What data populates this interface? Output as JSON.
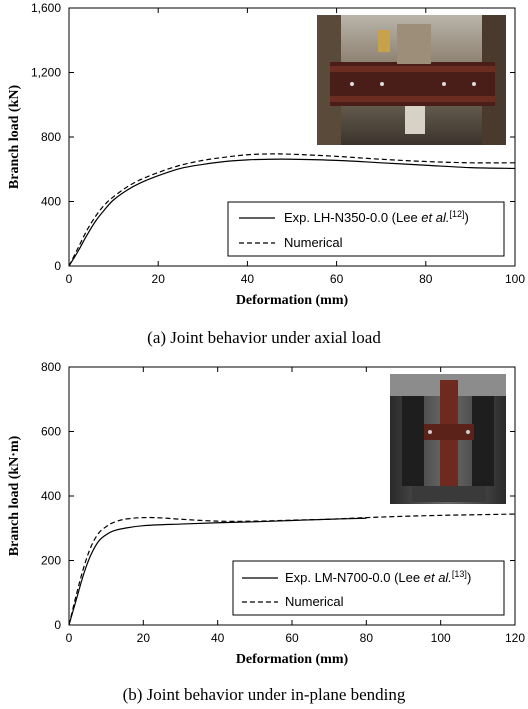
{
  "chart_data": [
    {
      "type": "line",
      "caption": "(a) Joint behavior under axial load",
      "xlabel": "Deformation (mm)",
      "ylabel": "Branch load (kN)",
      "xlim": [
        0,
        100
      ],
      "ylim": [
        0,
        1600
      ],
      "xticks": [
        0,
        20,
        40,
        60,
        80,
        100
      ],
      "yticks": [
        0,
        400,
        800,
        1200,
        1600
      ],
      "xtick_labels": [
        "0",
        "20",
        "40",
        "60",
        "80",
        "100"
      ],
      "ytick_labels": [
        "0",
        "400",
        "800",
        "1,200",
        "1,600"
      ],
      "grid": false,
      "legend_position": "bottom-right",
      "photo_inset": "test-specimen-photo",
      "series": [
        {
          "name": "Exp. LH-N350-0.0 (Lee et al.[12])",
          "name_parts": {
            "pre": "Exp. LH-N350-0.0 (Lee ",
            "italic": "et al.",
            "sup": "[12]",
            "post": ")"
          },
          "style": "solid",
          "x": [
            0,
            2,
            4,
            6,
            8,
            10,
            13,
            16,
            20,
            25,
            30,
            35,
            40,
            45,
            50,
            60,
            70,
            80,
            90,
            100
          ],
          "y": [
            0,
            90,
            190,
            280,
            350,
            410,
            470,
            515,
            560,
            605,
            630,
            648,
            658,
            662,
            662,
            655,
            640,
            625,
            610,
            605
          ]
        },
        {
          "name": "Numerical",
          "style": "dashed",
          "x": [
            0,
            2,
            4,
            6,
            8,
            10,
            13,
            16,
            20,
            25,
            30,
            35,
            40,
            45,
            50,
            60,
            70,
            80,
            90,
            100
          ],
          "y": [
            0,
            110,
            220,
            310,
            380,
            430,
            490,
            535,
            580,
            625,
            655,
            675,
            690,
            695,
            693,
            680,
            662,
            648,
            640,
            640
          ]
        }
      ]
    },
    {
      "type": "line",
      "caption": "(b) Joint behavior under in-plane bending",
      "xlabel": "Deformation (mm)",
      "ylabel": "Branch load (kN·m)",
      "xlim": [
        0,
        120
      ],
      "ylim": [
        0,
        800
      ],
      "xticks": [
        0,
        20,
        40,
        60,
        80,
        100,
        120
      ],
      "yticks": [
        0,
        200,
        400,
        600,
        800
      ],
      "xtick_labels": [
        "0",
        "20",
        "40",
        "60",
        "80",
        "100",
        "120"
      ],
      "ytick_labels": [
        "0",
        "200",
        "400",
        "600",
        "800"
      ],
      "grid": false,
      "legend_position": "bottom-right",
      "photo_inset": "test-specimen-photo",
      "series": [
        {
          "name": "Exp. LM-N700-0.0 (Lee et al.[13])",
          "name_parts": {
            "pre": "Exp. LM-N700-0.0 (Lee ",
            "italic": "et al.",
            "sup": "[13]",
            "post": ")"
          },
          "style": "solid",
          "x": [
            0,
            2,
            4,
            6,
            8,
            10,
            12,
            15,
            20,
            30,
            40,
            50,
            60,
            70,
            80
          ],
          "y": [
            0,
            80,
            160,
            220,
            260,
            280,
            292,
            300,
            308,
            313,
            317,
            320,
            324,
            328,
            331
          ]
        },
        {
          "name": "Numerical",
          "style": "dashed",
          "x": [
            0,
            2,
            4,
            6,
            8,
            10,
            12,
            15,
            20,
            25,
            30,
            40,
            50,
            60,
            70,
            80,
            90,
            100,
            110,
            120
          ],
          "y": [
            0,
            95,
            180,
            245,
            285,
            305,
            318,
            328,
            333,
            332,
            328,
            322,
            322,
            325,
            328,
            333,
            337,
            340,
            342,
            344
          ]
        }
      ]
    }
  ]
}
